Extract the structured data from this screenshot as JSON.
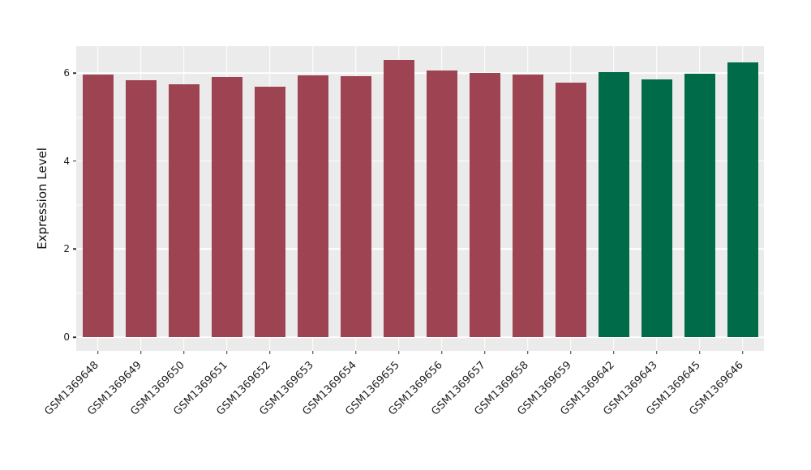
{
  "chart_data": {
    "type": "bar",
    "title": "",
    "xlabel": "",
    "ylabel": "Expression Level",
    "categories": [
      "GSM1369648",
      "GSM1369649",
      "GSM1369650",
      "GSM1369651",
      "GSM1369652",
      "GSM1369653",
      "GSM1369654",
      "GSM1369655",
      "GSM1369656",
      "GSM1369657",
      "GSM1369658",
      "GSM1369659",
      "GSM1369642",
      "GSM1369643",
      "GSM1369645",
      "GSM1369646"
    ],
    "values": [
      5.97,
      5.83,
      5.75,
      5.91,
      5.69,
      5.94,
      5.93,
      6.29,
      6.06,
      6.01,
      5.96,
      5.78,
      6.02,
      5.85,
      5.98,
      6.24
    ],
    "bar_colors": [
      "#9E4351",
      "#9E4351",
      "#9E4351",
      "#9E4351",
      "#9E4351",
      "#9E4351",
      "#9E4351",
      "#9E4351",
      "#9E4351",
      "#9E4351",
      "#9E4351",
      "#9E4351",
      "#006B49",
      "#006B49",
      "#006B49",
      "#006B49"
    ],
    "ylim": [
      -0.33,
      6.6
    ],
    "yticks": [
      0,
      2,
      4,
      6
    ],
    "minor_yticks": [
      1,
      3,
      5
    ],
    "x_tick_rotation_deg": 45,
    "grid": true,
    "legend": false,
    "colors": {
      "panel_background": "#EBEBEB",
      "grid": "#FFFFFF",
      "group_1_bar": "#9E4351",
      "group_2_bar": "#006B49",
      "tick_text": "#1F1F1F"
    }
  }
}
